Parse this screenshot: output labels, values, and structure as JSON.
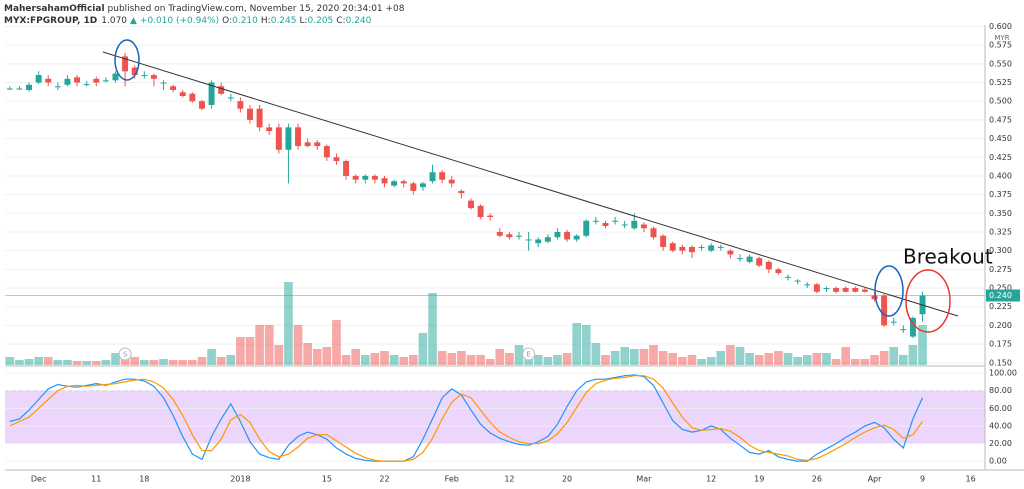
{
  "header": {
    "author": "MahersahamOfficial",
    "published": "published on TradingView.com, November 15, 2020 20:34:01 +08",
    "symbol": "MYX:FPGROUP, 1D",
    "last": "1.070",
    "change": "▲ +0.010 (+0.94%)",
    "ohlc": [
      [
        "O:",
        "0.210"
      ],
      [
        "H:",
        "0.245"
      ],
      [
        "L:",
        "0.205"
      ],
      [
        "C:",
        "0.240"
      ]
    ]
  },
  "chart_data": [
    {
      "type": "candlestick",
      "categories": [
        null,
        null,
        null,
        "Dec",
        null,
        null,
        null,
        null,
        null,
        "11",
        null,
        null,
        null,
        null,
        "18",
        null,
        null,
        null,
        null,
        null,
        null,
        null,
        null,
        null,
        "2018",
        null,
        null,
        null,
        null,
        null,
        null,
        null,
        null,
        "15",
        null,
        null,
        null,
        null,
        null,
        "22",
        null,
        null,
        null,
        null,
        null,
        null,
        "Feb",
        null,
        null,
        null,
        null,
        null,
        "12",
        null,
        null,
        null,
        null,
        null,
        "20",
        null,
        null,
        null,
        null,
        null,
        null,
        null,
        "Mar",
        null,
        null,
        null,
        null,
        null,
        null,
        "12",
        null,
        null,
        null,
        null,
        "19",
        null,
        null,
        null,
        null,
        null,
        "26",
        null,
        null,
        null,
        null,
        null,
        "Apr",
        null,
        null,
        null,
        null,
        "9",
        null,
        null,
        null,
        null,
        "16",
        null
      ],
      "ohlc": [
        [
          0.517,
          0.52,
          0.515,
          0.517
        ],
        [
          0.517,
          0.52,
          0.515,
          0.517
        ],
        [
          0.515,
          0.525,
          0.513,
          0.522
        ],
        [
          0.525,
          0.54,
          0.523,
          0.535
        ],
        [
          0.53,
          0.535,
          0.52,
          0.525
        ],
        [
          0.52,
          0.525,
          0.515,
          0.52
        ],
        [
          0.522,
          0.535,
          0.52,
          0.53
        ],
        [
          0.532,
          0.535,
          0.52,
          0.525
        ],
        [
          0.523,
          0.527,
          0.52,
          0.523
        ],
        [
          0.53,
          0.533,
          0.52,
          0.525
        ],
        [
          0.528,
          0.532,
          0.525,
          0.528
        ],
        [
          0.528,
          0.54,
          0.525,
          0.537
        ],
        [
          0.56,
          0.565,
          0.52,
          0.54
        ],
        [
          0.545,
          0.548,
          0.53,
          0.535
        ],
        [
          0.535,
          0.54,
          0.53,
          0.535
        ],
        [
          0.535,
          0.537,
          0.52,
          0.53
        ],
        [
          0.525,
          0.528,
          0.515,
          0.525
        ],
        [
          0.52,
          0.522,
          0.512,
          0.515
        ],
        [
          0.512,
          0.515,
          0.505,
          0.507
        ],
        [
          0.51,
          0.512,
          0.498,
          0.5
        ],
        [
          0.5,
          0.502,
          0.488,
          0.49
        ],
        [
          0.495,
          0.528,
          0.49,
          0.525
        ],
        [
          0.52,
          0.525,
          0.508,
          0.51
        ],
        [
          0.505,
          0.51,
          0.5,
          0.505
        ],
        [
          0.5,
          0.505,
          0.485,
          0.49
        ],
        [
          0.49,
          0.495,
          0.47,
          0.475
        ],
        [
          0.49,
          0.495,
          0.46,
          0.465
        ],
        [
          0.465,
          0.47,
          0.455,
          0.46
        ],
        [
          0.465,
          0.47,
          0.43,
          0.435
        ],
        [
          0.435,
          0.47,
          0.39,
          0.465
        ],
        [
          0.465,
          0.47,
          0.435,
          0.44
        ],
        [
          0.445,
          0.45,
          0.438,
          0.44
        ],
        [
          0.445,
          0.448,
          0.435,
          0.44
        ],
        [
          0.44,
          0.442,
          0.42,
          0.425
        ],
        [
          0.425,
          0.43,
          0.415,
          0.42
        ],
        [
          0.42,
          0.422,
          0.395,
          0.4
        ],
        [
          0.4,
          0.402,
          0.39,
          0.395
        ],
        [
          0.395,
          0.402,
          0.39,
          0.4
        ],
        [
          0.4,
          0.402,
          0.39,
          0.395
        ],
        [
          0.397,
          0.4,
          0.385,
          0.39
        ],
        [
          0.387,
          0.395,
          0.385,
          0.393
        ],
        [
          0.393,
          0.395,
          0.385,
          0.39
        ],
        [
          0.39,
          0.392,
          0.375,
          0.38
        ],
        [
          0.385,
          0.392,
          0.38,
          0.39
        ],
        [
          0.393,
          0.415,
          0.39,
          0.405
        ],
        [
          0.405,
          0.408,
          0.39,
          0.395
        ],
        [
          0.395,
          0.4,
          0.385,
          0.39
        ],
        [
          0.38,
          0.382,
          0.37,
          0.377
        ],
        [
          0.367,
          0.37,
          0.355,
          0.357
        ],
        [
          0.36,
          0.362,
          0.342,
          0.345
        ],
        [
          0.347,
          0.35,
          0.34,
          0.345
        ],
        [
          0.325,
          0.33,
          0.318,
          0.32
        ],
        [
          0.322,
          0.325,
          0.315,
          0.318
        ],
        [
          0.32,
          0.325,
          0.315,
          0.32
        ],
        [
          0.315,
          0.325,
          0.3,
          0.315
        ],
        [
          0.31,
          0.318,
          0.305,
          0.315
        ],
        [
          0.312,
          0.322,
          0.31,
          0.318
        ],
        [
          0.318,
          0.33,
          0.315,
          0.325
        ],
        [
          0.325,
          0.328,
          0.312,
          0.315
        ],
        [
          0.315,
          0.322,
          0.312,
          0.32
        ],
        [
          0.32,
          0.342,
          0.318,
          0.34
        ],
        [
          0.34,
          0.345,
          0.335,
          0.34
        ],
        [
          0.337,
          0.34,
          0.33,
          0.333
        ],
        [
          0.34,
          0.345,
          0.335,
          0.34
        ],
        [
          0.335,
          0.34,
          0.33,
          0.335
        ],
        [
          0.33,
          0.35,
          0.328,
          0.34
        ],
        [
          0.335,
          0.338,
          0.325,
          0.33
        ],
        [
          0.33,
          0.332,
          0.315,
          0.318
        ],
        [
          0.32,
          0.322,
          0.3,
          0.305
        ],
        [
          0.31,
          0.312,
          0.298,
          0.3
        ],
        [
          0.305,
          0.308,
          0.295,
          0.3
        ],
        [
          0.305,
          0.307,
          0.29,
          0.298
        ],
        [
          0.305,
          0.308,
          0.3,
          0.305
        ],
        [
          0.3,
          0.31,
          0.298,
          0.307
        ],
        [
          0.305,
          0.308,
          0.3,
          0.305
        ],
        [
          0.3,
          0.302,
          0.29,
          0.295
        ],
        [
          0.29,
          0.295,
          0.285,
          0.29
        ],
        [
          0.285,
          0.295,
          0.283,
          0.292
        ],
        [
          0.29,
          0.292,
          0.278,
          0.28
        ],
        [
          0.285,
          0.287,
          0.27,
          0.275
        ],
        [
          0.275,
          0.277,
          0.268,
          0.27
        ],
        [
          0.265,
          0.268,
          0.26,
          0.265
        ],
        [
          0.26,
          0.262,
          0.255,
          0.26
        ],
        [
          0.255,
          0.258,
          0.25,
          0.255
        ],
        [
          0.255,
          0.257,
          0.243,
          0.245
        ],
        [
          0.25,
          0.252,
          0.245,
          0.25
        ],
        [
          0.25,
          0.252,
          0.243,
          0.245
        ],
        [
          0.25,
          0.252,
          0.244,
          0.245
        ],
        [
          0.25,
          0.252,
          0.244,
          0.245
        ],
        [
          0.248,
          0.25,
          0.244,
          0.245
        ],
        [
          0.24,
          0.245,
          0.232,
          0.235
        ],
        [
          0.24,
          0.242,
          0.198,
          0.2
        ],
        [
          0.205,
          0.21,
          0.2,
          0.205
        ],
        [
          0.195,
          0.2,
          0.19,
          0.195
        ],
        [
          0.185,
          0.212,
          0.183,
          0.21
        ],
        [
          0.215,
          0.245,
          0.205,
          0.24
        ],
        null,
        null,
        null,
        null,
        null,
        null
      ],
      "volume": [
        8,
        5,
        6,
        8,
        8,
        5,
        5,
        4,
        4,
        4,
        5,
        12,
        12,
        8,
        5,
        5,
        6,
        5,
        5,
        5,
        8,
        16,
        8,
        10,
        28,
        28,
        40,
        40,
        20,
        83,
        40,
        22,
        16,
        18,
        45,
        10,
        16,
        10,
        12,
        14,
        10,
        8,
        10,
        32,
        72,
        14,
        12,
        14,
        10,
        10,
        6,
        16,
        12,
        20,
        10,
        10,
        8,
        10,
        12,
        42,
        40,
        22,
        10,
        14,
        18,
        16,
        16,
        20,
        14,
        12,
        8,
        10,
        6,
        8,
        14,
        20,
        18,
        12,
        10,
        12,
        14,
        12,
        8,
        10,
        12,
        12,
        6,
        18,
        6,
        6,
        10,
        14,
        18,
        10,
        20,
        40,
        null,
        null,
        null,
        null,
        null,
        null
      ],
      "volume_lim": [
        0,
        340
      ],
      "events": [
        null,
        null,
        null,
        null,
        null,
        null,
        null,
        null,
        null,
        null,
        null,
        null,
        "S",
        null,
        null,
        null,
        null,
        null,
        null,
        null,
        null,
        null,
        null,
        null,
        null,
        null,
        null,
        null,
        null,
        null,
        null,
        null,
        null,
        null,
        null,
        null,
        null,
        null,
        null,
        null,
        null,
        null,
        null,
        null,
        null,
        null,
        null,
        null,
        null,
        null,
        null,
        null,
        null,
        null,
        "E",
        null,
        null,
        null,
        null,
        null,
        null,
        null,
        null,
        null,
        null,
        null,
        null,
        null,
        null,
        null,
        null,
        null,
        null,
        null,
        null,
        null,
        null,
        null,
        null,
        null,
        null,
        null,
        null,
        null,
        null,
        null,
        null,
        null,
        null,
        null,
        null,
        null,
        null,
        null,
        null,
        null,
        null,
        null,
        null,
        null,
        null,
        null
      ],
      "up_color": "#26a69a",
      "down_color": "#ef5350",
      "ylim": [
        0.147,
        0.602
      ],
      "yticks": [
        {
          "value": 0.6,
          "label": "0.600"
        },
        {
          "value": 0.575,
          "label": "0.575"
        },
        {
          "value": 0.55,
          "label": "0.550"
        },
        {
          "value": 0.525,
          "label": "0.525"
        },
        {
          "value": 0.5,
          "label": "0.500"
        },
        {
          "value": 0.475,
          "label": "0.475"
        },
        {
          "value": 0.45,
          "label": "0.450"
        },
        {
          "value": 0.425,
          "label": "0.425"
        },
        {
          "value": 0.4,
          "label": "0.400"
        },
        {
          "value": 0.375,
          "label": "0.375"
        },
        {
          "value": 0.35,
          "label": "0.350"
        },
        {
          "value": 0.325,
          "label": "0.325"
        },
        {
          "value": 0.3,
          "label": "0.300"
        },
        {
          "value": 0.275,
          "label": "0.275"
        },
        {
          "value": 0.25,
          "label": "0.250"
        },
        {
          "value": 0.225,
          "label": "0.225"
        },
        {
          "value": 0.2,
          "label": "0.200"
        },
        {
          "value": 0.175,
          "label": "0.175"
        },
        {
          "value": 0.15,
          "label": "0.150"
        }
      ],
      "unit": "MYR",
      "grid": true,
      "last_price": {
        "value": 0.24,
        "label": "0.240"
      },
      "annotation": "Breakout"
    },
    {
      "type": "line",
      "series": [
        {
          "color": "#2196f3",
          "values": [
            45,
            48,
            58,
            70,
            82,
            87,
            85,
            84,
            86,
            88,
            86,
            90,
            93,
            93,
            91,
            85,
            72,
            52,
            28,
            8,
            2,
            28,
            48,
            65,
            45,
            22,
            8,
            4,
            2,
            18,
            28,
            33,
            30,
            25,
            15,
            8,
            3,
            1,
            0,
            0,
            0,
            0,
            5,
            25,
            48,
            72,
            82,
            75,
            58,
            42,
            32,
            26,
            22,
            19,
            18,
            22,
            28,
            42,
            62,
            80,
            90,
            93,
            93,
            95,
            97,
            98,
            96,
            86,
            66,
            46,
            36,
            33,
            35,
            40,
            36,
            26,
            18,
            10,
            8,
            12,
            5,
            2,
            0,
            0,
            8,
            14,
            20,
            27,
            33,
            40,
            44,
            38,
            25,
            15,
            48,
            72,
            null,
            null,
            null,
            null,
            null,
            null
          ]
        },
        {
          "color": "#ff9800",
          "values": [
            40,
            45,
            50,
            60,
            70,
            80,
            85,
            86,
            85,
            86,
            87,
            88,
            90,
            92,
            93,
            90,
            83,
            70,
            52,
            30,
            12,
            12,
            25,
            47,
            53,
            44,
            25,
            11,
            5,
            8,
            16,
            26,
            30,
            30,
            23,
            16,
            9,
            4,
            1,
            0,
            0,
            0,
            2,
            10,
            26,
            48,
            67,
            76,
            72,
            58,
            44,
            33,
            27,
            22,
            20,
            20,
            23,
            31,
            44,
            61,
            78,
            88,
            92,
            94,
            95,
            97,
            97,
            93,
            83,
            66,
            50,
            38,
            35,
            36,
            37,
            34,
            27,
            18,
            12,
            10,
            8,
            6,
            2,
            1,
            3,
            8,
            14,
            20,
            27,
            33,
            38,
            41,
            36,
            26,
            30,
            45,
            null,
            null,
            null,
            null,
            null,
            null
          ]
        }
      ],
      "ylim": [
        -10,
        108
      ],
      "yticks": [
        {
          "value": 100,
          "label": "100.00"
        },
        {
          "value": 80,
          "label": "80.00"
        },
        {
          "value": 60,
          "label": "60.00"
        },
        {
          "value": 40,
          "label": "40.00"
        },
        {
          "value": 20,
          "label": "20.00"
        },
        {
          "value": 0,
          "label": "0.00"
        }
      ],
      "band": [
        20,
        80
      ],
      "band_color": "#e7ccfb",
      "grid": true
    }
  ]
}
